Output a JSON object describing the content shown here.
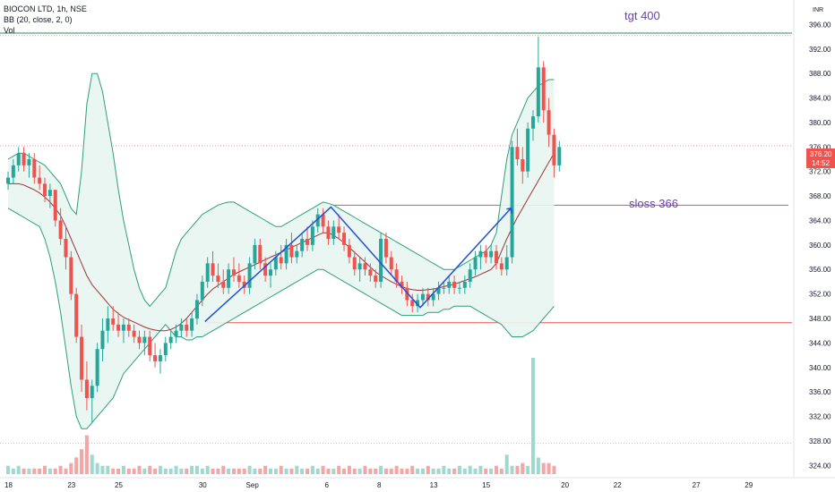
{
  "legend": {
    "symbol": "BIOCON LTD, 1h, NSE",
    "indicator": "BB (20, close, 2, 0)",
    "volume": "Vol"
  },
  "currency": "INR",
  "price_label": {
    "price": "376.20",
    "countdown": "14:52"
  },
  "colors": {
    "up": "#26a69a",
    "down": "#ef5350",
    "band": "#2e9e7d",
    "band_fill": "#e8f5f1",
    "basis": "#a0323c",
    "drawing": "#1f50d8",
    "annotation": "#6a3fb5",
    "hline_green": "#2e8b57",
    "hline_red": "#ef5350"
  },
  "chart_data": {
    "type": "candlestick",
    "title": "BIOCON LTD, 1h, NSE",
    "ylim": [
      322,
      400
    ],
    "y_ticks": [
      324,
      328,
      332,
      336,
      340,
      344,
      348,
      352,
      356,
      360,
      364,
      368,
      372,
      376,
      380,
      384,
      388,
      392,
      396
    ],
    "y_tick_labels": [
      "324.00",
      "328.00",
      "332.00",
      "336.00",
      "340.00",
      "344.00",
      "348.00",
      "352.00",
      "356.00",
      "360.00",
      "364.00",
      "368.00",
      "372.00",
      "376.00",
      "380.00",
      "384.00",
      "388.00",
      "392.00",
      "396.00"
    ],
    "x_ticks": [
      {
        "label": "18",
        "bar": 0
      },
      {
        "label": "23",
        "bar": 12
      },
      {
        "label": "25",
        "bar": 21
      },
      {
        "label": "30",
        "bar": 37
      },
      {
        "label": "Sep",
        "bar": 46
      },
      {
        "label": "6",
        "bar": 61
      },
      {
        "label": "8",
        "bar": 71
      },
      {
        "label": "13",
        "bar": 81
      },
      {
        "label": "15",
        "bar": 91
      },
      {
        "label": "20",
        "bar": 106
      },
      {
        "label": "22",
        "bar": 116
      },
      {
        "label": "27",
        "bar": 131
      },
      {
        "label": "29",
        "bar": 141
      }
    ],
    "ohlc": [
      [
        370,
        372,
        369,
        371
      ],
      [
        371,
        374,
        370,
        373
      ],
      [
        373,
        376,
        372,
        375
      ],
      [
        375,
        376,
        372,
        373
      ],
      [
        373,
        375,
        371,
        374
      ],
      [
        374,
        375,
        370,
        371
      ],
      [
        371,
        373,
        369,
        370
      ],
      [
        370,
        371,
        367,
        368
      ],
      [
        368,
        370,
        366,
        369
      ],
      [
        369,
        369,
        363,
        364
      ],
      [
        364,
        366,
        360,
        361
      ],
      [
        361,
        363,
        356,
        358
      ],
      [
        358,
        359,
        351,
        352
      ],
      [
        352,
        353,
        344,
        345
      ],
      [
        345,
        347,
        336,
        338
      ],
      [
        338,
        341,
        333,
        335
      ],
      [
        335,
        338,
        331,
        337
      ],
      [
        337,
        344,
        336,
        343
      ],
      [
        343,
        348,
        341,
        346
      ],
      [
        346,
        350,
        344,
        348
      ],
      [
        348,
        350,
        346,
        347
      ],
      [
        347,
        349,
        345,
        346
      ],
      [
        346,
        348,
        344,
        347
      ],
      [
        347,
        348,
        345,
        346
      ],
      [
        346,
        347,
        344,
        345
      ],
      [
        345,
        346,
        343,
        344
      ],
      [
        344,
        346,
        342,
        345
      ],
      [
        345,
        346,
        341,
        342
      ],
      [
        342,
        344,
        340,
        341
      ],
      [
        341,
        343,
        339,
        342
      ],
      [
        342,
        345,
        341,
        344
      ],
      [
        344,
        346,
        343,
        345
      ],
      [
        345,
        347,
        344,
        346
      ],
      [
        346,
        348,
        345,
        347
      ],
      [
        347,
        348,
        345,
        346
      ],
      [
        346,
        349,
        345,
        348
      ],
      [
        348,
        352,
        347,
        351
      ],
      [
        351,
        355,
        350,
        354
      ],
      [
        354,
        358,
        353,
        357
      ],
      [
        357,
        359,
        354,
        355
      ],
      [
        355,
        357,
        353,
        354
      ],
      [
        354,
        356,
        352,
        353
      ],
      [
        353,
        357,
        352,
        356
      ],
      [
        356,
        358,
        354,
        355
      ],
      [
        355,
        357,
        353,
        354
      ],
      [
        354,
        355,
        352,
        353
      ],
      [
        353,
        358,
        352,
        357
      ],
      [
        357,
        361,
        356,
        360
      ],
      [
        360,
        361,
        356,
        357
      ],
      [
        357,
        358,
        354,
        355
      ],
      [
        355,
        357,
        353,
        356
      ],
      [
        356,
        359,
        355,
        358
      ],
      [
        358,
        360,
        356,
        357
      ],
      [
        357,
        361,
        356,
        360
      ],
      [
        360,
        362,
        357,
        358
      ],
      [
        358,
        360,
        357,
        359
      ],
      [
        359,
        362,
        358,
        361
      ],
      [
        361,
        363,
        359,
        360
      ],
      [
        360,
        364,
        359,
        363
      ],
      [
        363,
        366,
        362,
        365
      ],
      [
        365,
        366,
        362,
        363
      ],
      [
        363,
        364,
        360,
        361
      ],
      [
        361,
        364,
        360,
        363
      ],
      [
        363,
        365,
        361,
        362
      ],
      [
        362,
        363,
        359,
        360
      ],
      [
        360,
        361,
        357,
        358
      ],
      [
        358,
        359,
        355,
        356
      ],
      [
        356,
        358,
        354,
        357
      ],
      [
        357,
        358,
        355,
        356
      ],
      [
        356,
        357,
        354,
        355
      ],
      [
        355,
        356,
        353,
        354
      ],
      [
        354,
        362,
        353,
        361
      ],
      [
        361,
        362,
        357,
        358
      ],
      [
        358,
        359,
        355,
        356
      ],
      [
        356,
        357,
        353,
        354
      ],
      [
        354,
        355,
        352,
        353
      ],
      [
        353,
        354,
        350,
        351
      ],
      [
        351,
        352,
        349,
        350
      ],
      [
        350,
        352,
        349,
        351
      ],
      [
        351,
        353,
        350,
        352
      ],
      [
        352,
        353,
        350,
        351
      ],
      [
        351,
        353,
        350,
        352
      ],
      [
        352,
        354,
        351,
        353
      ],
      [
        353,
        354,
        352,
        353
      ],
      [
        353,
        355,
        352,
        354
      ],
      [
        354,
        355,
        352,
        353
      ],
      [
        353,
        354,
        352,
        353
      ],
      [
        353,
        355,
        352,
        354
      ],
      [
        354,
        357,
        353,
        356
      ],
      [
        356,
        359,
        355,
        358
      ],
      [
        358,
        360,
        356,
        359
      ],
      [
        359,
        360,
        357,
        358
      ],
      [
        358,
        360,
        357,
        359
      ],
      [
        359,
        360,
        356,
        357
      ],
      [
        357,
        358,
        355,
        356
      ],
      [
        356,
        360,
        355,
        358
      ],
      [
        358,
        377,
        357,
        376
      ],
      [
        376,
        379,
        373,
        374
      ],
      [
        374,
        376,
        370,
        372
      ],
      [
        372,
        380,
        371,
        379
      ],
      [
        379,
        382,
        377,
        381
      ],
      [
        381,
        394,
        380,
        389
      ],
      [
        389,
        390,
        380,
        382
      ],
      [
        382,
        384,
        376,
        378
      ],
      [
        378,
        379,
        371,
        373
      ],
      [
        373,
        377,
        372,
        376
      ]
    ],
    "volume": [
      3,
      2,
      3,
      2,
      2,
      2,
      2,
      3,
      2,
      2,
      3,
      2,
      4,
      6,
      9,
      14,
      7,
      4,
      3,
      3,
      2,
      2,
      3,
      2,
      2,
      3,
      2,
      3,
      2,
      3,
      2,
      2,
      3,
      2,
      2,
      3,
      3,
      2,
      3,
      2,
      2,
      3,
      2,
      2,
      2,
      2,
      3,
      2,
      2,
      3,
      2,
      2,
      3,
      2,
      2,
      3,
      2,
      2,
      3,
      2,
      3,
      2,
      2,
      3,
      2,
      3,
      2,
      2,
      3,
      2,
      2,
      3,
      2,
      2,
      3,
      2,
      2,
      3,
      2,
      2,
      3,
      2,
      2,
      3,
      2,
      2,
      3,
      2,
      3,
      2,
      3,
      2,
      2,
      3,
      2,
      7,
      3,
      3,
      4,
      3,
      42,
      6,
      4,
      4,
      3
    ],
    "bb_upper": [
      374,
      374.5,
      375,
      375,
      374.5,
      374,
      373.5,
      373,
      372,
      371,
      370,
      368,
      366,
      365,
      372,
      383,
      388,
      388,
      385,
      380,
      375,
      369,
      364,
      360,
      356,
      353,
      351,
      350,
      351,
      352,
      353,
      356,
      359,
      361,
      362,
      363,
      364,
      365,
      365.5,
      366,
      366.5,
      366.8,
      367,
      367,
      366.5,
      366,
      365.5,
      365,
      364.5,
      364,
      363.5,
      363,
      363,
      363.5,
      364,
      364.5,
      365,
      365.5,
      366,
      366.5,
      367,
      366.8,
      366.5,
      366,
      365.5,
      365,
      364.5,
      364,
      363.5,
      363,
      362.5,
      362,
      361.5,
      361,
      360.5,
      360,
      359.5,
      359,
      358.5,
      358,
      357.5,
      357,
      356.5,
      356,
      356,
      356,
      356.5,
      357,
      357.5,
      358,
      358.5,
      359,
      360,
      362,
      368,
      374,
      378,
      380,
      382,
      384,
      385,
      386,
      386.5,
      387,
      387
    ],
    "bb_lower": [
      366,
      365.5,
      365,
      364.5,
      364,
      363.5,
      363,
      361,
      358,
      354,
      349,
      343,
      337,
      332,
      330,
      330,
      331,
      332,
      333,
      334,
      335,
      337,
      339,
      340,
      341,
      342,
      343,
      344,
      345,
      346,
      347,
      346,
      345,
      345,
      344.5,
      344.5,
      345,
      345,
      345.5,
      346,
      346.5,
      347,
      347.5,
      348,
      348.5,
      349,
      349.5,
      350,
      350.5,
      351,
      351.5,
      352,
      352.5,
      353,
      353.5,
      354,
      354.5,
      355,
      355.5,
      356,
      356,
      355.5,
      355,
      354.5,
      354,
      353.5,
      353,
      352.5,
      352,
      351.5,
      351,
      350.5,
      350,
      349.5,
      349,
      348.5,
      348.5,
      348.5,
      348.5,
      348.5,
      349,
      349,
      349,
      349.5,
      349.5,
      350,
      350,
      350,
      350,
      349.5,
      349,
      348.5,
      348,
      347.5,
      347,
      346,
      345,
      345,
      345,
      345.5,
      346,
      347,
      348,
      349,
      350
    ],
    "bb_basis": [
      370,
      370,
      370,
      369.8,
      369.4,
      369,
      368.5,
      367.8,
      367,
      366,
      364.8,
      363,
      361,
      359,
      357,
      355,
      353.5,
      352.5,
      351.5,
      350.5,
      349.5,
      348.8,
      348.2,
      347.8,
      347.4,
      347,
      346.6,
      346.3,
      346.1,
      346,
      346,
      346.2,
      346.6,
      347.2,
      348,
      349,
      350,
      351,
      352,
      352.8,
      353.4,
      354,
      354.6,
      355.2,
      355.6,
      356,
      356.4,
      356.8,
      357.2,
      357.6,
      358,
      358.4,
      358.8,
      359.2,
      359.6,
      360,
      360.4,
      360.8,
      361.2,
      361.6,
      362,
      362,
      361.6,
      361,
      360.4,
      359.6,
      358.8,
      358,
      357.2,
      356.4,
      355.6,
      355,
      354.5,
      354,
      353.6,
      353.2,
      352.9,
      352.7,
      352.6,
      352.6,
      352.7,
      352.8,
      353,
      353.2,
      353.4,
      353.6,
      353.9,
      354.2,
      354.5,
      354.8,
      355.2,
      355.6,
      356,
      357,
      359,
      361,
      362.8,
      364.5,
      366,
      367.5,
      369,
      370.5,
      372,
      373.5,
      375
    ]
  },
  "annotations": {
    "target": "tgt 400",
    "stoploss": "sloss 366"
  },
  "levels": {
    "green_line": 394.6,
    "red_line": 347.3,
    "stoploss_line": 366.5,
    "top_dotted": 394.2,
    "current_dotted": 376.2,
    "bottom_dotted": 327.6
  },
  "drawing_points": [
    {
      "bar": 37.5,
      "price": 347.5
    },
    {
      "bar": 61.5,
      "price": 366.2
    },
    {
      "bar": 78.5,
      "price": 349.8
    },
    {
      "bar": 95.8,
      "price": 366.0
    }
  ]
}
